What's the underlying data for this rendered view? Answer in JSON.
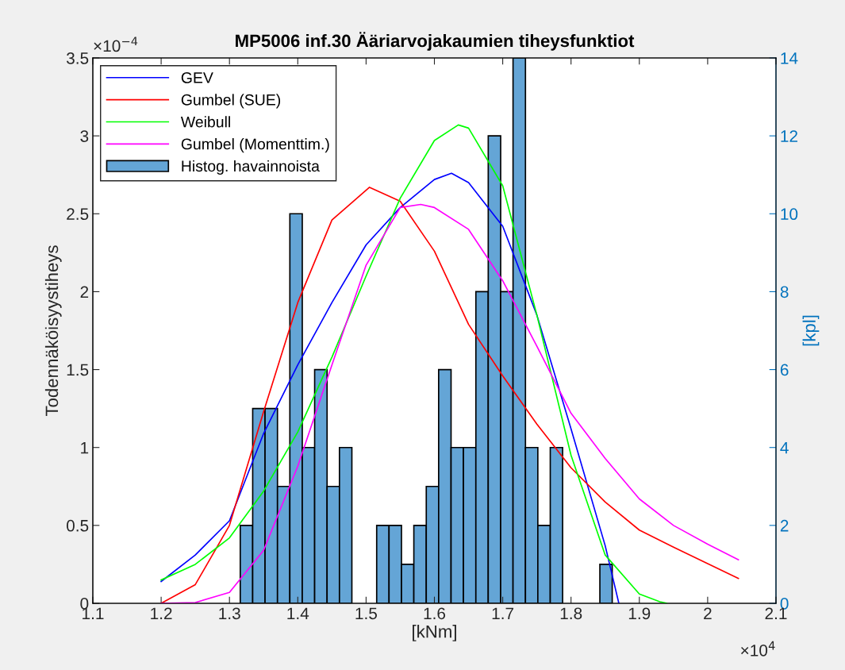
{
  "chart_data": {
    "type": "line",
    "title": "MP5006 inf.30 Ääriarvojakaumien tiheysfunktiot",
    "xlabel": "[kNm]",
    "ylabel": "Todennäköisyystiheys",
    "y2label": "[kpl]",
    "annotations": [
      "×10$^{−4}$",
      "×10$^{4}$"
    ],
    "xlim": [
      1.1,
      2.1
    ],
    "xticks": [
      1.1,
      1.2,
      1.3,
      1.4,
      1.5,
      1.6,
      1.7,
      1.8,
      1.9,
      2,
      2.1
    ],
    "ylim": [
      0,
      3.5
    ],
    "yticks": [
      0,
      0.5,
      1,
      1.5,
      2,
      2.5,
      3,
      3.5
    ],
    "y2lim": [
      0,
      14
    ],
    "y2ticks": [
      0,
      2,
      4,
      6,
      8,
      10,
      12,
      14
    ],
    "grid": false,
    "legend": "top left",
    "marker": "none",
    "line_style": "solid",
    "series": [
      {
        "name": "GEV",
        "color": "#0000ff",
        "x": [
          1.2,
          1.25,
          1.3,
          1.35,
          1.4,
          1.45,
          1.5,
          1.55,
          1.6,
          1.625,
          1.65,
          1.7,
          1.75,
          1.8,
          1.85,
          1.87
        ],
        "values": [
          0.14,
          0.31,
          0.53,
          1.09,
          1.53,
          1.93,
          2.3,
          2.54,
          2.72,
          2.76,
          2.7,
          2.42,
          1.85,
          1.12,
          0.37,
          0
        ]
      },
      {
        "name": "Gumbel (SUE)",
        "color": "#ff0000",
        "x": [
          1.2,
          1.25,
          1.3,
          1.35,
          1.4,
          1.45,
          1.505,
          1.55,
          1.6,
          1.65,
          1.7,
          1.75,
          1.8,
          1.85,
          1.9,
          1.95,
          2.0,
          2.045
        ],
        "values": [
          0,
          0.12,
          0.5,
          1.23,
          1.93,
          2.46,
          2.67,
          2.58,
          2.26,
          1.79,
          1.46,
          1.15,
          0.87,
          0.65,
          0.47,
          0.36,
          0.255,
          0.16
        ]
      },
      {
        "name": "Weibull",
        "color": "#00ff00",
        "x": [
          1.2,
          1.25,
          1.3,
          1.35,
          1.4,
          1.45,
          1.5,
          1.55,
          1.6,
          1.635,
          1.65,
          1.7,
          1.75,
          1.8,
          1.85,
          1.9,
          1.93,
          1.94
        ],
        "values": [
          0.15,
          0.25,
          0.42,
          0.72,
          1.1,
          1.58,
          2.1,
          2.6,
          2.97,
          3.07,
          3.05,
          2.68,
          1.85,
          0.95,
          0.31,
          0.06,
          0.01,
          0
        ]
      },
      {
        "name": "Gumbel (Momenttim.)",
        "color": "#ff00ff",
        "x": [
          1.2,
          1.25,
          1.3,
          1.35,
          1.4,
          1.45,
          1.5,
          1.55,
          1.58,
          1.6,
          1.65,
          1.7,
          1.75,
          1.8,
          1.85,
          1.9,
          1.95,
          2.0,
          2.045
        ],
        "values": [
          0,
          0.005,
          0.07,
          0.34,
          0.88,
          1.53,
          2.17,
          2.54,
          2.56,
          2.54,
          2.4,
          2.07,
          1.65,
          1.22,
          0.93,
          0.67,
          0.5,
          0.38,
          0.28
        ]
      },
      {
        "name": "Histog. havainnoista",
        "type": "histogram",
        "axis": "y2",
        "color": "#64a5d6",
        "bins": [
          1.3158,
          1.334,
          1.3521,
          1.3703,
          1.3884,
          1.4066,
          1.4247,
          1.4429,
          1.461,
          1.4792,
          1.4973,
          1.5155,
          1.5336,
          1.5518,
          1.5699,
          1.5881,
          1.6062,
          1.6244,
          1.6425,
          1.6607,
          1.6788,
          1.697,
          1.7151,
          1.7333,
          1.7514,
          1.7696,
          1.7877,
          1.8059,
          1.824,
          1.8422,
          1.8603
        ],
        "values": [
          2,
          5,
          5,
          3,
          10,
          4,
          6,
          3,
          4,
          0,
          0,
          2,
          2,
          1,
          2,
          3,
          6,
          4,
          4,
          8,
          12,
          8,
          14,
          4,
          2,
          4,
          0,
          0,
          0,
          1
        ]
      }
    ]
  }
}
